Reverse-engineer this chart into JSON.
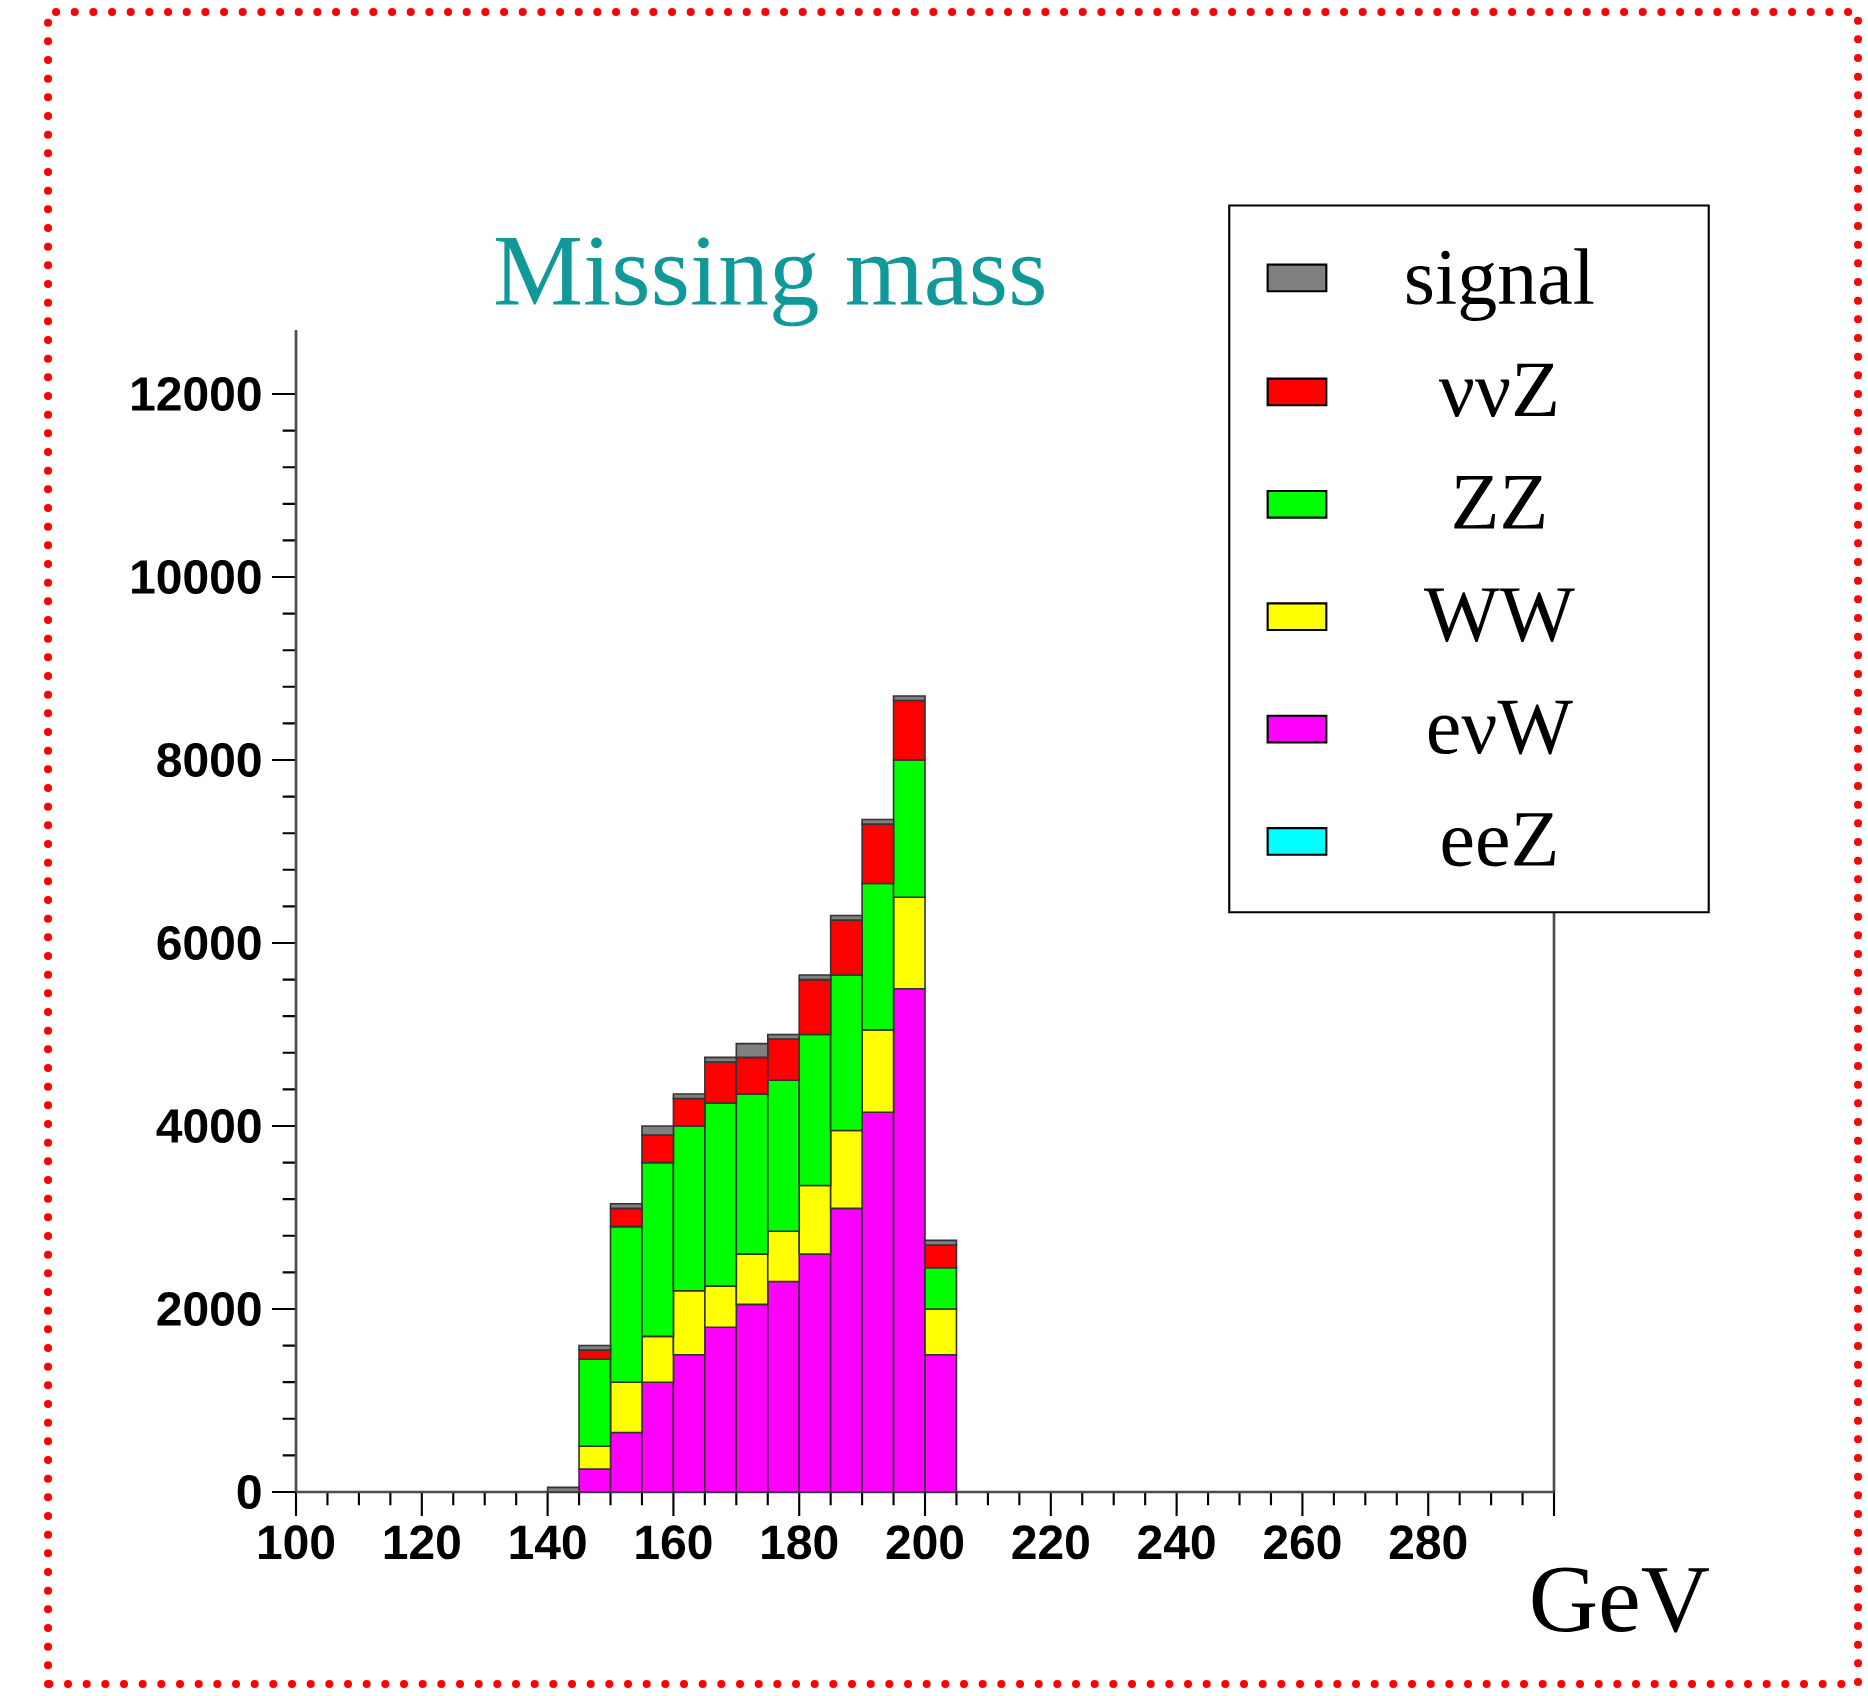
{
  "chart_data": {
    "type": "bar",
    "title": "Missing mass",
    "xlabel": "GeV",
    "x": [
      142.5,
      147.5,
      152.5,
      157.5,
      162.5,
      167.5,
      172.5,
      177.5,
      182.5,
      187.5,
      192.5,
      197.5,
      202.5
    ],
    "stacked": true,
    "series": [
      {
        "name": "eeZ",
        "color": "#00ffff",
        "values": [
          null,
          null,
          null,
          null,
          null,
          null,
          null,
          null,
          null,
          null,
          null,
          null,
          null
        ]
      },
      {
        "name": "eνW",
        "color": "#ff00ff",
        "values": [
          null,
          250,
          650,
          1200,
          1500,
          1800,
          2050,
          2300,
          2600,
          3100,
          4150,
          5500,
          1500
        ]
      },
      {
        "name": "WW",
        "color": "#ffff00",
        "values": [
          null,
          250,
          550,
          500,
          700,
          450,
          550,
          550,
          750,
          850,
          900,
          1000,
          500
        ]
      },
      {
        "name": "ZZ",
        "color": "#00ff00",
        "values": [
          null,
          950,
          1700,
          1900,
          1800,
          2000,
          1750,
          1650,
          1650,
          1700,
          1600,
          1500,
          450
        ]
      },
      {
        "name": "ννZ",
        "color": "#ff0000",
        "values": [
          null,
          100,
          200,
          300,
          300,
          450,
          400,
          450,
          600,
          600,
          650,
          650,
          250
        ]
      },
      {
        "name": "signal",
        "color": "#808080",
        "values": [
          50,
          50,
          50,
          100,
          50,
          50,
          150,
          50,
          50,
          50,
          50,
          50,
          50
        ]
      }
    ],
    "xlim": [
      100,
      300
    ],
    "ylim": [
      0,
      12700
    ],
    "xticks": [
      100,
      120,
      140,
      160,
      180,
      200,
      220,
      240,
      260,
      280,
      {
        "value": 300,
        "label": null
      }
    ],
    "yticks": [
      0,
      2000,
      4000,
      6000,
      8000,
      10000,
      12000
    ],
    "legend": "top right"
  }
}
